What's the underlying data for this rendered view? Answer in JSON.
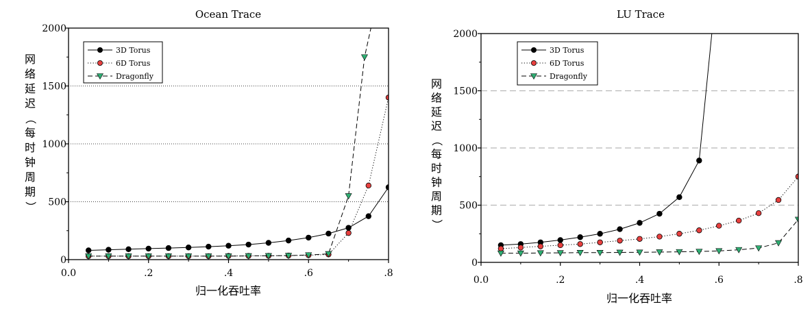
{
  "chart_data": [
    {
      "type": "line",
      "title": "Ocean Trace",
      "xlabel": "归一化吞吐率",
      "ylabel": "网络延迟（每时钟周期）",
      "xlim": [
        0,
        0.8
      ],
      "ylim": [
        0,
        2000
      ],
      "xticks": [
        {
          "v": 0,
          "label": "0.0"
        },
        {
          "v": 0.2,
          "label": ".2"
        },
        {
          "v": 0.4,
          "label": ".4"
        },
        {
          "v": 0.6,
          "label": ".6"
        },
        {
          "v": 0.8,
          "label": ".8"
        }
      ],
      "yticks": [
        {
          "v": 0,
          "label": "0"
        },
        {
          "v": 500,
          "label": "500"
        },
        {
          "v": 1000,
          "label": "1000"
        },
        {
          "v": 1500,
          "label": "1500"
        },
        {
          "v": 2000,
          "label": "2000"
        }
      ],
      "grid": "horizontal dotted",
      "legend_position": "top-left",
      "series": [
        {
          "name": "3D Torus",
          "marker": "circle",
          "color": "#000000",
          "dash": "solid",
          "x": [
            0.05,
            0.1,
            0.15,
            0.2,
            0.25,
            0.3,
            0.35,
            0.4,
            0.45,
            0.5,
            0.55,
            0.6,
            0.65,
            0.7,
            0.75,
            0.8
          ],
          "y": [
            80,
            85,
            90,
            95,
            100,
            105,
            112,
            120,
            130,
            145,
            165,
            190,
            225,
            275,
            375,
            625
          ]
        },
        {
          "name": "6D Torus",
          "marker": "circle",
          "color": "#e8403f",
          "dash": "dotted",
          "x": [
            0.05,
            0.1,
            0.15,
            0.2,
            0.25,
            0.3,
            0.35,
            0.4,
            0.45,
            0.5,
            0.55,
            0.6,
            0.65,
            0.7,
            0.75,
            0.8
          ],
          "y": [
            30,
            30,
            30,
            30,
            30,
            30,
            30,
            32,
            32,
            33,
            35,
            38,
            45,
            230,
            640,
            1400
          ]
        },
        {
          "name": "Dragonfly",
          "marker": "triangle-down",
          "color": "#2fae73",
          "dash": "dashed",
          "x": [
            0.05,
            0.1,
            0.15,
            0.2,
            0.25,
            0.3,
            0.35,
            0.4,
            0.45,
            0.5,
            0.55,
            0.6,
            0.65,
            0.7,
            0.74,
            0.756
          ],
          "y": [
            30,
            30,
            30,
            30,
            30,
            30,
            30,
            30,
            32,
            33,
            35,
            40,
            50,
            550,
            1750,
            2000
          ]
        }
      ]
    },
    {
      "type": "line",
      "title": "LU Trace",
      "xlabel": "归一化吞吐率",
      "ylabel": "网络延迟（每时钟周期）",
      "xlim": [
        0,
        0.8
      ],
      "ylim": [
        0,
        2000
      ],
      "xticks": [
        {
          "v": 0,
          "label": "0.0"
        },
        {
          "v": 0.2,
          "label": ".2"
        },
        {
          "v": 0.4,
          "label": ".4"
        },
        {
          "v": 0.6,
          "label": ".6"
        },
        {
          "v": 0.8,
          "label": ".8"
        }
      ],
      "yticks": [
        {
          "v": 0,
          "label": "0"
        },
        {
          "v": 500,
          "label": "500"
        },
        {
          "v": 1000,
          "label": "1000"
        },
        {
          "v": 1500,
          "label": "1500"
        },
        {
          "v": 2000,
          "label": "2000"
        }
      ],
      "grid": "horizontal dashed",
      "legend_position": "top-left",
      "series": [
        {
          "name": "3D Torus",
          "marker": "circle",
          "color": "#000000",
          "dash": "solid",
          "x": [
            0.05,
            0.1,
            0.15,
            0.2,
            0.25,
            0.3,
            0.35,
            0.4,
            0.45,
            0.5,
            0.55,
            0.582
          ],
          "y": [
            150,
            160,
            175,
            195,
            220,
            250,
            290,
            345,
            425,
            570,
            890,
            2000
          ]
        },
        {
          "name": "6D Torus",
          "marker": "circle",
          "color": "#e8403f",
          "dash": "dotted",
          "x": [
            0.05,
            0.1,
            0.15,
            0.2,
            0.25,
            0.3,
            0.35,
            0.4,
            0.45,
            0.5,
            0.55,
            0.6,
            0.65,
            0.7,
            0.75,
            0.8
          ],
          "y": [
            120,
            130,
            140,
            150,
            160,
            175,
            190,
            205,
            225,
            250,
            280,
            320,
            365,
            430,
            545,
            750
          ]
        },
        {
          "name": "Dragonfly",
          "marker": "triangle-down",
          "color": "#2fae73",
          "dash": "dashed",
          "x": [
            0.05,
            0.1,
            0.15,
            0.2,
            0.25,
            0.3,
            0.35,
            0.4,
            0.45,
            0.5,
            0.55,
            0.6,
            0.65,
            0.7,
            0.75,
            0.8
          ],
          "y": [
            80,
            80,
            82,
            83,
            85,
            85,
            87,
            88,
            90,
            92,
            95,
            100,
            110,
            125,
            170,
            375
          ]
        }
      ]
    }
  ]
}
